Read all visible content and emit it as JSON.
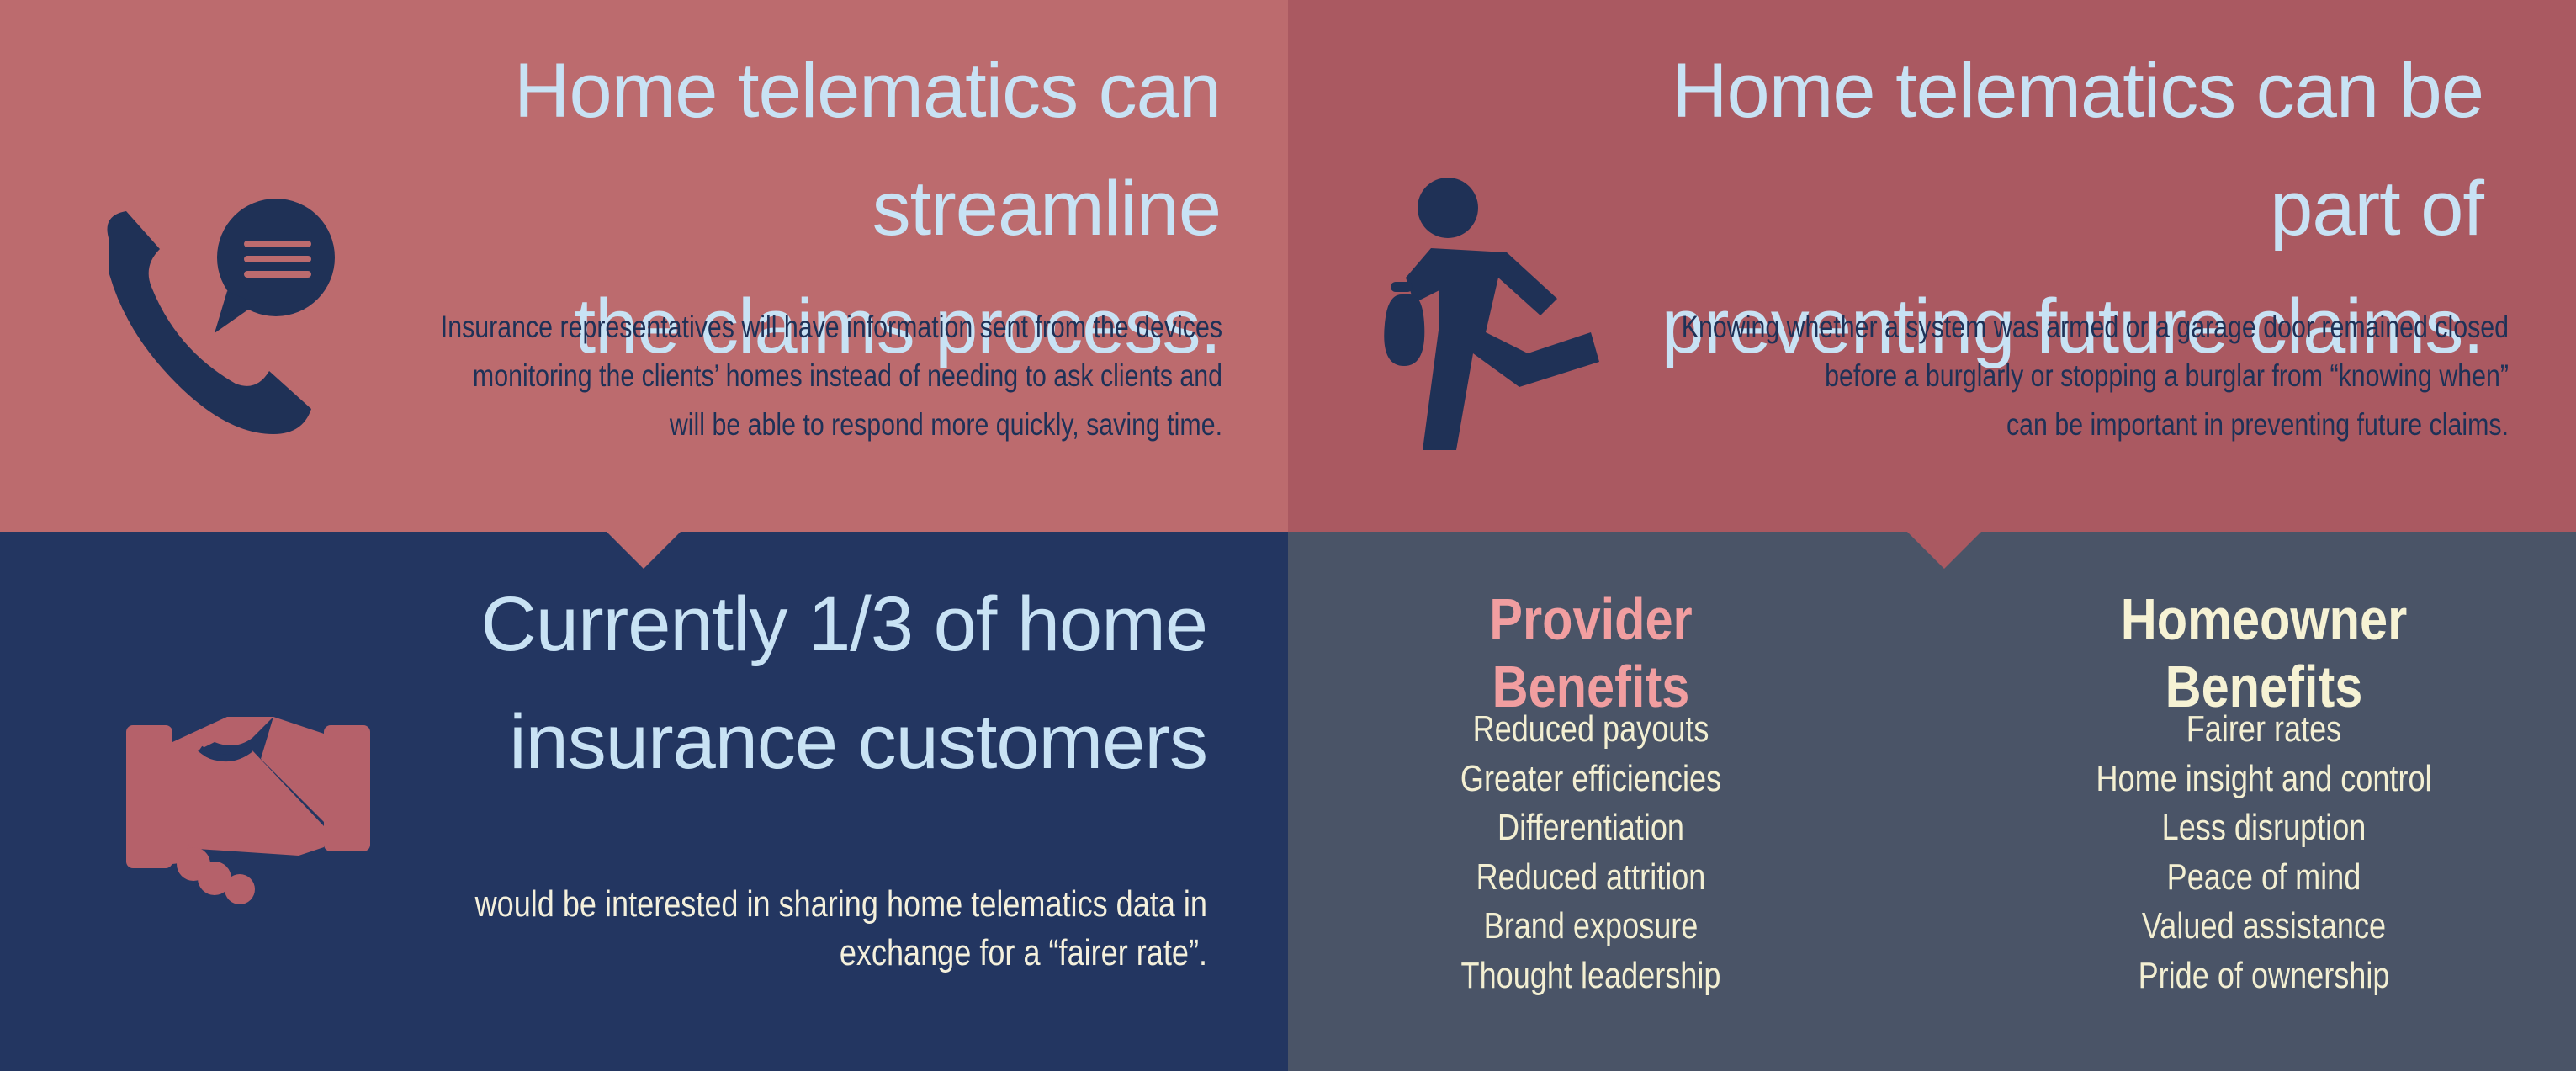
{
  "colors": {
    "top_left_bg": "#bc6b6e",
    "top_right_bg": "#aa5961",
    "bottom_left_bg": "#233661",
    "bottom_right_bg": "#4a5467",
    "heading": "#c8e2f4",
    "icon_navy": "#1f3156",
    "icon_rose": "#b5616a",
    "provider_title": "#f19ea0",
    "homeowner_title": "#f6f2d4",
    "list_text": "#f3efd2"
  },
  "streamline": {
    "icon": "phone-chat-icon",
    "heading_line1": "Home telematics can streamline",
    "heading_line2": "the claims process.",
    "body_line1": "Insurance representatives will have information sent from the devices",
    "body_line2": "monitoring the clients’ homes instead of needing to ask clients and",
    "body_line3": "will be able to respond more quickly, saving time."
  },
  "prevent": {
    "icon": "burglar-running-icon",
    "heading_line1": "Home telematics can be part of",
    "heading_line2": "preventing future claims.",
    "body_line1": "Knowing whether a system was armed or a garage door remained closed",
    "body_line2": "before a burglarly or stopping a burglar from “knowing when”",
    "body_line3": "can be important in preventing future claims."
  },
  "customers": {
    "icon": "handshake-icon",
    "heading_line1": "Currently 1/3 of home",
    "heading_line2": "insurance customers",
    "body_line1": "would be interested in sharing home telematics data in",
    "body_line2": "exchange for a “fairer rate”."
  },
  "benefits": {
    "provider": {
      "title": "Provider Benefits",
      "items": [
        "Reduced payouts",
        "Greater efficiencies",
        "Differentiation",
        "Reduced attrition",
        "Brand exposure",
        "Thought leadership"
      ]
    },
    "homeowner": {
      "title": "Homeowner Benefits",
      "items": [
        "Fairer rates",
        "Home insight and control",
        "Less disruption",
        "Peace of mind",
        "Valued assistance",
        "Pride of ownership"
      ]
    }
  }
}
